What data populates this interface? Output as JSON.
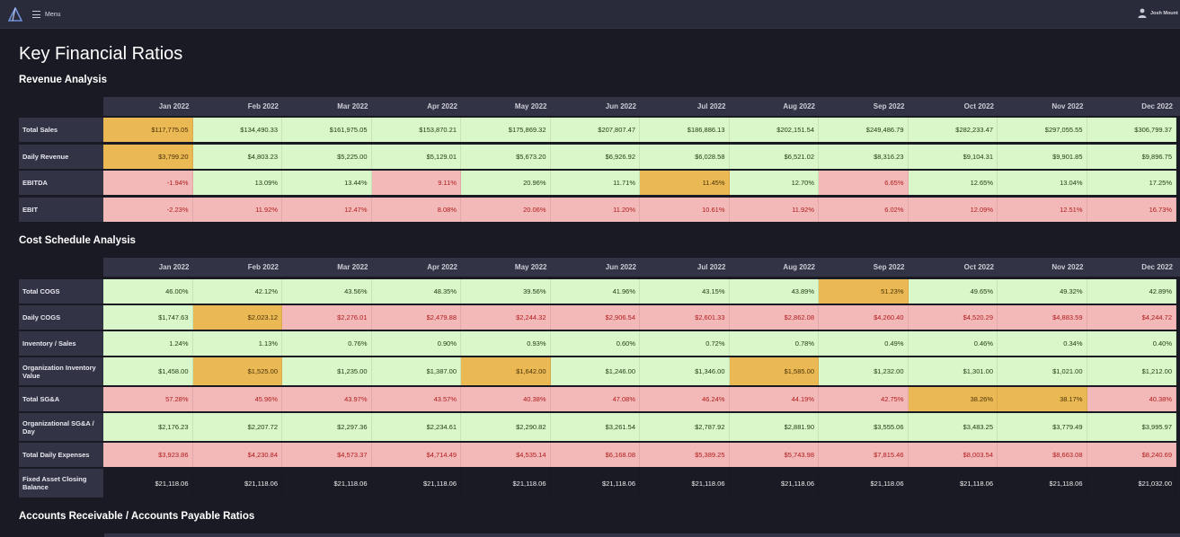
{
  "topbar": {
    "menu_label": "Menu",
    "user_name": "Josh Mount",
    "logo_icon": "triangle-logo",
    "menu_icon": "hamburger-icon",
    "user_icon": "user-icon"
  },
  "page_title": "Key Financial Ratios",
  "months": [
    "Jan 2022",
    "Feb 2022",
    "Mar 2022",
    "Apr 2022",
    "May 2022",
    "Jun 2022",
    "Jul 2022",
    "Aug 2022",
    "Sep 2022",
    "Oct 2022",
    "Nov 2022",
    "Dec 2022"
  ],
  "colors": {
    "good": "#d9f7c8",
    "bad": "#f3b9b9",
    "warn": "#ebb954",
    "header": "#323344",
    "background": "#1a1a24"
  },
  "sections": [
    {
      "title": "Revenue Analysis",
      "rows": [
        {
          "label": "Total Sales",
          "values": [
            "$117,775.05",
            "$134,490.33",
            "$161,975.05",
            "$153,870.21",
            "$175,869.32",
            "$207,807.47",
            "$186,886.13",
            "$202,151.54",
            "$249,486.79",
            "$282,233.47",
            "$297,055.55",
            "$306,799.37"
          ],
          "status": [
            "warn",
            "good",
            "good",
            "good",
            "good",
            "good",
            "good",
            "good",
            "good",
            "good",
            "good",
            "good"
          ]
        },
        {
          "label": "Daily Revenue",
          "values": [
            "$3,799.20",
            "$4,803.23",
            "$5,225.00",
            "$5,129.01",
            "$5,673.20",
            "$6,926.92",
            "$6,028.58",
            "$6,521.02",
            "$8,316.23",
            "$9,104.31",
            "$9,901.85",
            "$9,896.75"
          ],
          "status": [
            "warn",
            "good",
            "good",
            "good",
            "good",
            "good",
            "good",
            "good",
            "good",
            "good",
            "good",
            "good"
          ]
        },
        {
          "label": "EBITDA",
          "values": [
            "-1.94%",
            "13.09%",
            "13.44%",
            "9.11%",
            "20.96%",
            "11.71%",
            "11.45%",
            "12.70%",
            "6.65%",
            "12.65%",
            "13.04%",
            "17.25%"
          ],
          "status": [
            "bad",
            "good",
            "good",
            "bad",
            "good",
            "good",
            "warn",
            "good",
            "bad",
            "good",
            "good",
            "good"
          ]
        },
        {
          "label": "EBIT",
          "values": [
            "-2.23%",
            "11.92%",
            "12.47%",
            "8.08%",
            "20.06%",
            "11.20%",
            "10.61%",
            "11.92%",
            "6.02%",
            "12.09%",
            "12.51%",
            "16.73%"
          ],
          "status": [
            "bad",
            "bad",
            "bad",
            "bad",
            "bad",
            "bad",
            "bad",
            "bad",
            "bad",
            "bad",
            "bad",
            "bad"
          ]
        }
      ]
    },
    {
      "title": "Cost Schedule Analysis",
      "rows": [
        {
          "label": "Total COGS",
          "values": [
            "46.00%",
            "42.12%",
            "43.56%",
            "48.35%",
            "39.56%",
            "41.96%",
            "43.15%",
            "43.89%",
            "51.23%",
            "49.65%",
            "49.32%",
            "42.89%"
          ],
          "status": [
            "good",
            "good",
            "good",
            "good",
            "good",
            "good",
            "good",
            "good",
            "warn",
            "good",
            "good",
            "good"
          ]
        },
        {
          "label": "Daily COGS",
          "values": [
            "$1,747.63",
            "$2,023.12",
            "$2,276.01",
            "$2,479.88",
            "$2,244.32",
            "$2,906.54",
            "$2,601.33",
            "$2,862.08",
            "$4,260.40",
            "$4,520.29",
            "$4,883.59",
            "$4,244.72"
          ],
          "status": [
            "good",
            "warn",
            "bad",
            "bad",
            "bad",
            "bad",
            "bad",
            "bad",
            "bad",
            "bad",
            "bad",
            "bad"
          ]
        },
        {
          "label": "Inventory / Sales",
          "values": [
            "1.24%",
            "1.13%",
            "0.76%",
            "0.90%",
            "0.93%",
            "0.60%",
            "0.72%",
            "0.78%",
            "0.49%",
            "0.46%",
            "0.34%",
            "0.40%"
          ],
          "status": [
            "good",
            "good",
            "good",
            "good",
            "good",
            "good",
            "good",
            "good",
            "good",
            "good",
            "good",
            "good"
          ]
        },
        {
          "label": "Organization Inventory Value",
          "values": [
            "$1,458.00",
            "$1,525.00",
            "$1,235.00",
            "$1,387.00",
            "$1,642.00",
            "$1,246.00",
            "$1,346.00",
            "$1,585.00",
            "$1,232.00",
            "$1,301.00",
            "$1,021.00",
            "$1,212.00"
          ],
          "status": [
            "good",
            "warn",
            "good",
            "good",
            "warn",
            "good",
            "good",
            "warn",
            "good",
            "good",
            "good",
            "good"
          ]
        },
        {
          "label": "Total SG&A",
          "values": [
            "57.28%",
            "45.96%",
            "43.97%",
            "43.57%",
            "40.38%",
            "47.08%",
            "46.24%",
            "44.19%",
            "42.75%",
            "38.26%",
            "38.17%",
            "40.38%"
          ],
          "status": [
            "bad",
            "bad",
            "bad",
            "bad",
            "bad",
            "bad",
            "bad",
            "bad",
            "bad",
            "warn",
            "warn",
            "bad"
          ]
        },
        {
          "label": "Organizational SG&A / Day",
          "values": [
            "$2,176.23",
            "$2,207.72",
            "$2,297.36",
            "$2,234.61",
            "$2,290.82",
            "$3,261.54",
            "$2,787.92",
            "$2,881.90",
            "$3,555.06",
            "$3,483.25",
            "$3,779.49",
            "$3,995.97"
          ],
          "status": [
            "good",
            "good",
            "good",
            "good",
            "good",
            "good",
            "good",
            "good",
            "good",
            "good",
            "good",
            "good"
          ]
        },
        {
          "label": "Total Daily Expenses",
          "values": [
            "$3,923.86",
            "$4,230.84",
            "$4,573.37",
            "$4,714.49",
            "$4,535.14",
            "$6,168.08",
            "$5,389.25",
            "$5,743.98",
            "$7,815.46",
            "$8,003.54",
            "$8,663.08",
            "$8,240.69"
          ],
          "status": [
            "bad",
            "bad",
            "bad",
            "bad",
            "bad",
            "bad",
            "bad",
            "bad",
            "bad",
            "bad",
            "bad",
            "bad"
          ]
        },
        {
          "label": "Fixed Asset Closing Balance",
          "values": [
            "$21,118.06",
            "$21,118.06",
            "$21,118.06",
            "$21,118.06",
            "$21,118.06",
            "$21,118.06",
            "$21,118.06",
            "$21,118.06",
            "$21,118.06",
            "$21,118.06",
            "$21,118.06",
            "$21,032.00"
          ],
          "status": [
            "dark",
            "dark",
            "dark",
            "dark",
            "dark",
            "dark",
            "dark",
            "dark",
            "dark",
            "dark",
            "dark",
            "dark"
          ]
        }
      ]
    },
    {
      "title": "Accounts Receivable / Accounts Payable Ratios",
      "rows": []
    }
  ]
}
